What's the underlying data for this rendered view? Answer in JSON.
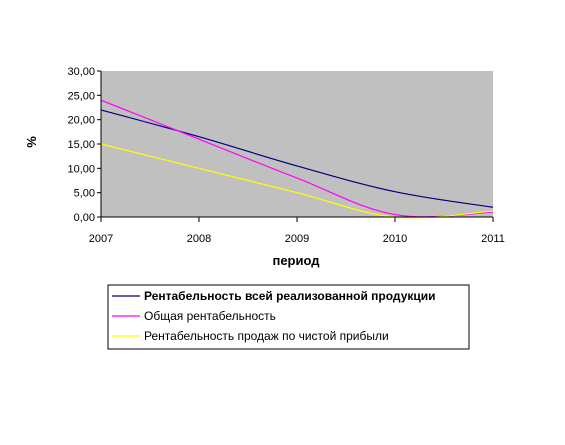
{
  "chart_data": {
    "type": "line",
    "title": "",
    "xlabel": "период",
    "ylabel": "%",
    "x": [
      "2007",
      "2008",
      "2009",
      "2010",
      "2011"
    ],
    "yticks": [
      "0,00",
      "5,00",
      "10,00",
      "15,00",
      "20,00",
      "25,00",
      "30,00"
    ],
    "ylim": [
      0,
      30
    ],
    "grid": false,
    "plot_background": "#c0c0c0",
    "legend_position": "bottom",
    "series": [
      {
        "name": "Рентабельность всей реализованной продукции",
        "color": "#000080",
        "bold_legend": true,
        "values": [
          22.0,
          16.5,
          10.5,
          5.2,
          2.0
        ]
      },
      {
        "name": "Общая рентабельность",
        "color": "#ff00ff",
        "bold_legend": false,
        "values": [
          24.0,
          16.0,
          8.0,
          0.5,
          1.0
        ]
      },
      {
        "name": "Рентабельность продаж по чистой прибыли",
        "color": "#ffff00",
        "bold_legend": false,
        "values": [
          15.0,
          10.0,
          5.0,
          0.0,
          1.2
        ]
      }
    ]
  }
}
